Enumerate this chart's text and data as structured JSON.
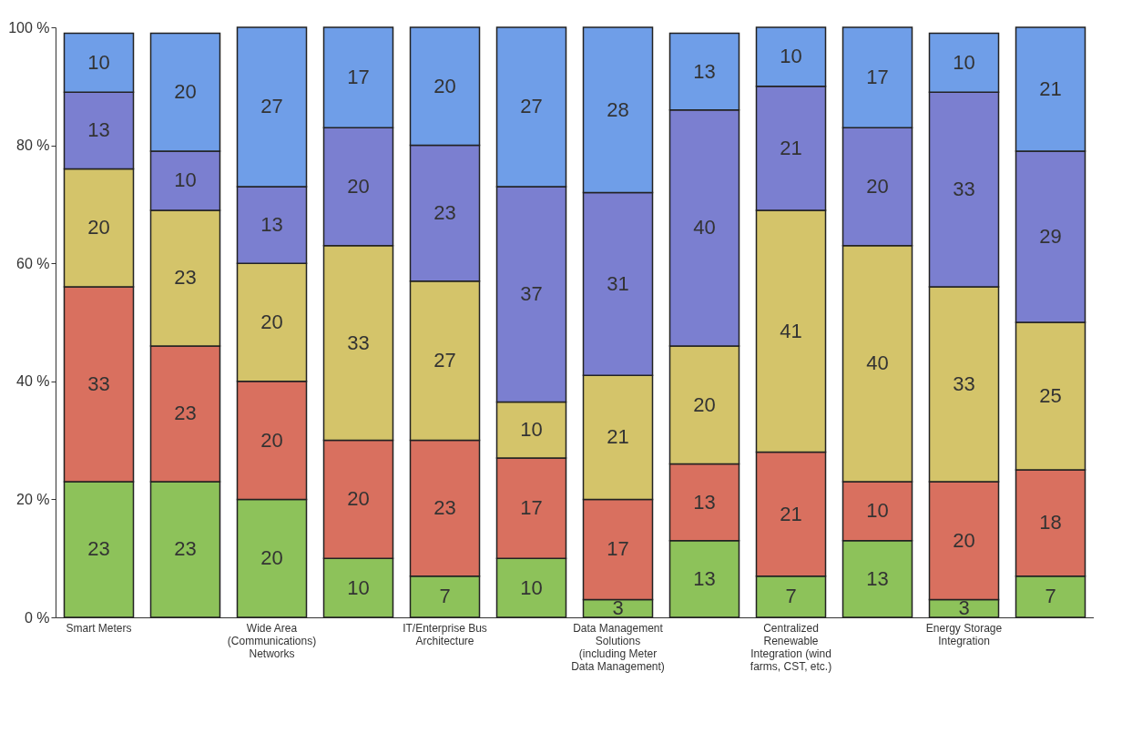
{
  "chart_data": {
    "type": "bar",
    "stacked": true,
    "legend": false,
    "grid": false,
    "categories": [
      "Smart Meters",
      null,
      "Wide Area (Communications) Networks",
      null,
      "IT/Enterprise Bus Architecture",
      null,
      "Data Management Solutions (including Meter Data Management)",
      null,
      "Centralized Renewable Integration (wind farms, CST, etc.)",
      null,
      "Energy Storage Integration",
      null
    ],
    "ylim": [
      0,
      100
    ],
    "yticks": [
      {
        "value": 0,
        "label": "0 %"
      },
      {
        "value": 20,
        "label": "20 %"
      },
      {
        "value": 40,
        "label": "40 %"
      },
      {
        "value": 60,
        "label": "60 %"
      },
      {
        "value": 80,
        "label": "80 %"
      },
      {
        "value": 100,
        "label": "100 %"
      }
    ],
    "series": [
      {
        "color": "#8dc25a",
        "values": [
          23,
          23,
          20,
          10,
          7,
          10,
          3,
          13,
          7,
          13,
          3,
          7
        ],
        "value_labels": [
          "23",
          "23",
          "20",
          "10",
          "7",
          "10",
          "3",
          "13",
          "7",
          "13",
          "3",
          "7"
        ]
      },
      {
        "color": "#d9705f",
        "values": [
          33,
          23,
          20,
          20,
          23,
          17,
          17,
          13,
          21,
          10,
          20,
          18
        ],
        "value_labels": [
          "33",
          "23",
          "20",
          "20",
          "23",
          "17",
          "17",
          "13",
          "21",
          "10",
          "20",
          "18"
        ]
      },
      {
        "color": "#d4c46a",
        "values": [
          20,
          23,
          20,
          33,
          27,
          9.5,
          21,
          20,
          41,
          40,
          33,
          25
        ],
        "value_labels": [
          "20",
          "23",
          "20",
          "33",
          "27",
          "10",
          "21",
          "20",
          "41",
          "40",
          "33",
          "25"
        ]
      },
      {
        "color": "#7b7fd0",
        "values": [
          13,
          10,
          13,
          20,
          23,
          36.5,
          31,
          40,
          21,
          20,
          33,
          29
        ],
        "value_labels": [
          "13",
          "10",
          "13",
          "20",
          "23",
          "37",
          "31",
          "40",
          "21",
          "20",
          "33",
          "29"
        ]
      },
      {
        "color": "#6f9ee8",
        "values": [
          10,
          20,
          27,
          17,
          20,
          27,
          28,
          13,
          10,
          17,
          10,
          21
        ],
        "value_labels": [
          "10",
          "20",
          "27",
          "17",
          "20",
          "27",
          "28",
          "13",
          "10",
          "17",
          "10",
          "21"
        ]
      }
    ]
  }
}
